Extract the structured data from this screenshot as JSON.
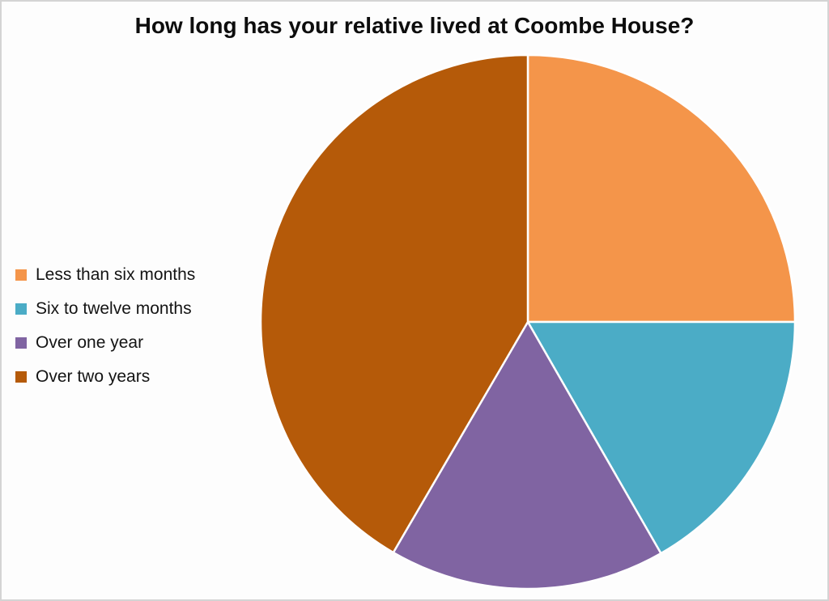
{
  "page": {
    "background_color": "#FDFDFD",
    "border_color": "#D4D4D4"
  },
  "chart_data": {
    "type": "pie",
    "title": "How long has your relative lived at Coombe House?",
    "legend_position": "left",
    "start_angle_deg": 0,
    "direction": "clockwise",
    "slice_separator_color": "#FFFFFF",
    "slices": [
      {
        "label": "Less than six months",
        "percent": 25.0,
        "color": "#F4954A"
      },
      {
        "label": "Six to twelve months",
        "percent": 16.7,
        "color": "#4BACC6"
      },
      {
        "label": "Over one year",
        "percent": 16.7,
        "color": "#8064A2"
      },
      {
        "label": "Over two years",
        "percent": 41.6,
        "color": "#B55A09"
      }
    ]
  }
}
